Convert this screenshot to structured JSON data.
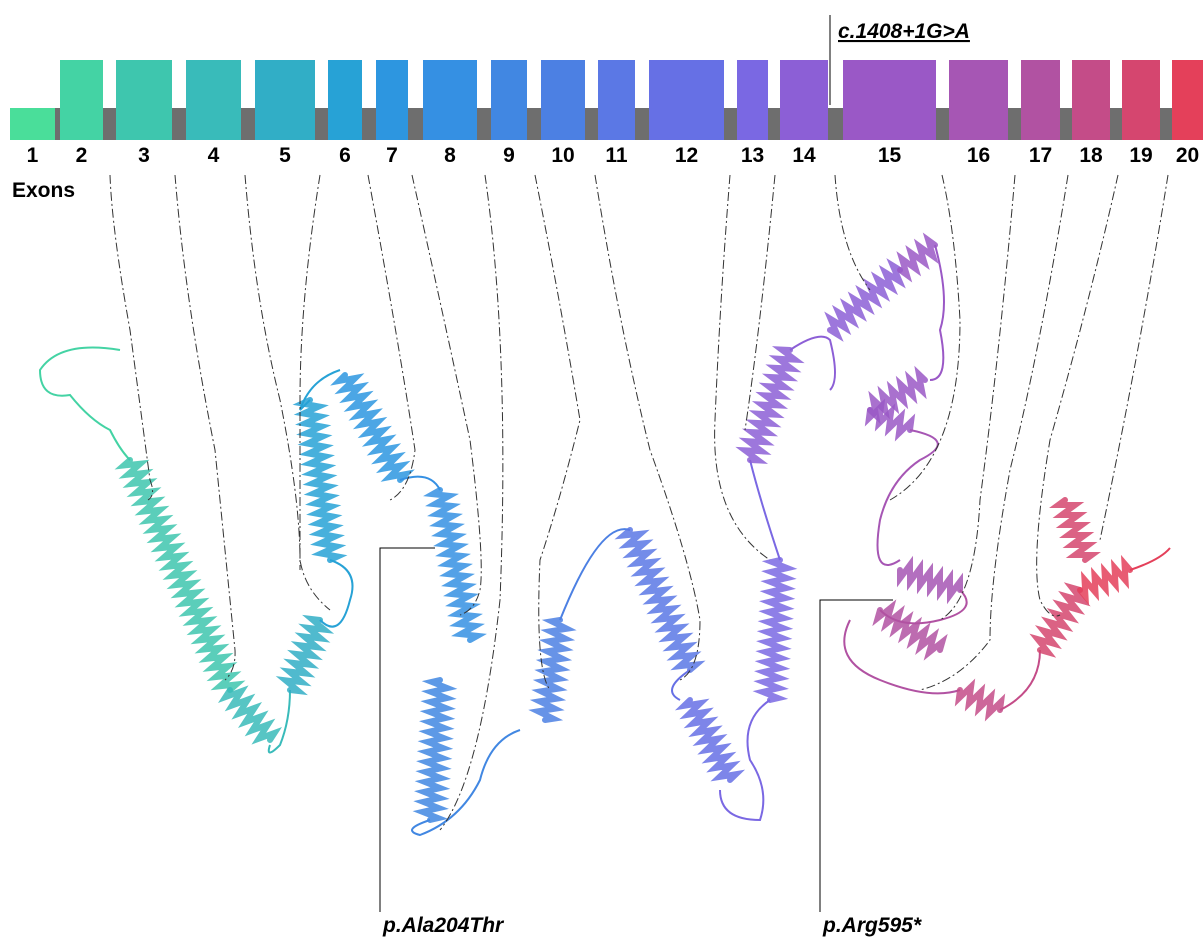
{
  "exons": [
    {
      "label": "1",
      "color": "#4ade9a"
    },
    {
      "label": "2",
      "color": "#44d3a4"
    },
    {
      "label": "3",
      "color": "#3ec6ae"
    },
    {
      "label": "4",
      "color": "#39bbba"
    },
    {
      "label": "5",
      "color": "#31aec6"
    },
    {
      "label": "6",
      "color": "#27a2d6"
    },
    {
      "label": "7",
      "color": "#2d96e0"
    },
    {
      "label": "8",
      "color": "#3590e3"
    },
    {
      "label": "9",
      "color": "#4187e2"
    },
    {
      "label": "10",
      "color": "#4c80e3"
    },
    {
      "label": "11",
      "color": "#5b78e5"
    },
    {
      "label": "12",
      "color": "#6670e5"
    },
    {
      "label": "13",
      "color": "#7a68e3"
    },
    {
      "label": "14",
      "color": "#8c5fd6"
    },
    {
      "label": "15",
      "color": "#9a58c6"
    },
    {
      "label": "16",
      "color": "#a656b4"
    },
    {
      "label": "17",
      "color": "#b152a2"
    },
    {
      "label": "18",
      "color": "#c44c88"
    },
    {
      "label": "19",
      "color": "#d5466f"
    },
    {
      "label": "20",
      "color": "#e4405a"
    }
  ],
  "exons_label": "Exons",
  "mutations": {
    "splice": "c.1408+1G>A",
    "missense": "p.Ala204Thr",
    "nonsense": "p.Arg595*"
  }
}
